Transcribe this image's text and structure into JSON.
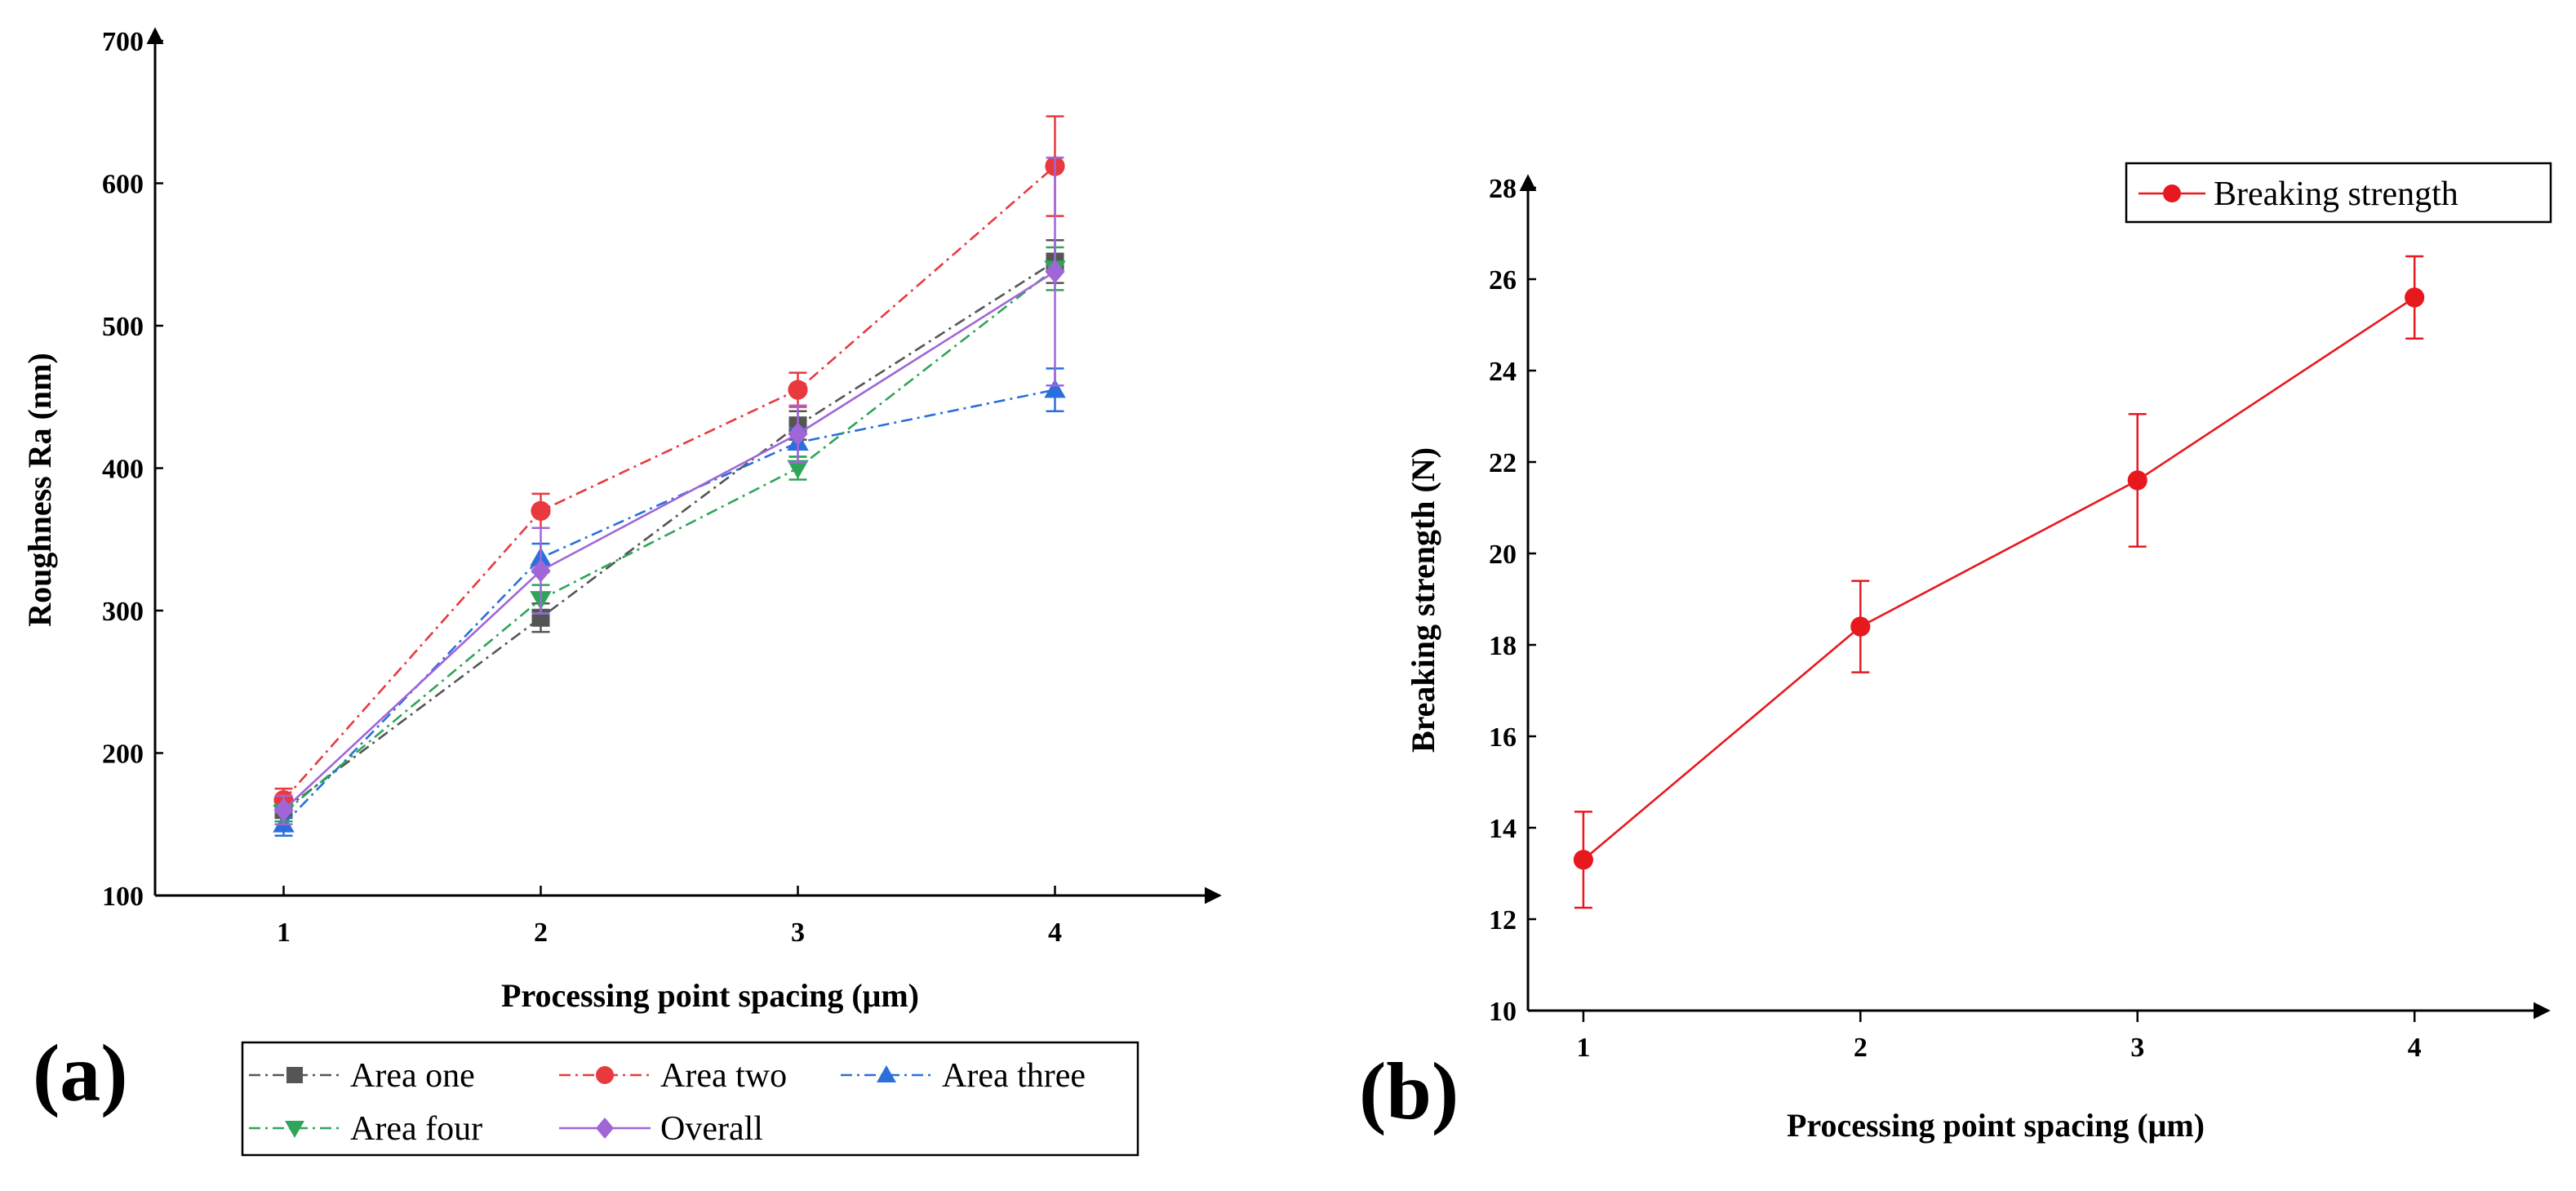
{
  "panels": {
    "a": {
      "label": "(a)"
    },
    "b": {
      "label": "(b)"
    }
  },
  "chart_data": [
    {
      "type": "line",
      "xlabel": "Processing point spacing (μm)",
      "ylabel": "Roughness Ra (nm)",
      "x": [
        1,
        2,
        3,
        4
      ],
      "x_ticks": [
        "1",
        "2",
        "3",
        "4"
      ],
      "xlim": [
        0.5,
        4.5
      ],
      "ylim": [
        100,
        700
      ],
      "y_ticks": [
        "100",
        "200",
        "300",
        "400",
        "500",
        "600",
        "700"
      ],
      "legend_position": "bottom",
      "series": [
        {
          "name": "Area one",
          "values": [
            160,
            295,
            430,
            545
          ],
          "errors": [
            8,
            10,
            10,
            15
          ],
          "color": "#555555",
          "marker": "square",
          "dash": "dashdot"
        },
        {
          "name": "Area two",
          "values": [
            167,
            370,
            455,
            612
          ],
          "errors": [
            8,
            12,
            12,
            35
          ],
          "color": "#e8393f",
          "marker": "circle",
          "dash": "dashdot"
        },
        {
          "name": "Area three",
          "values": [
            150,
            337,
            418,
            455
          ],
          "errors": [
            8,
            10,
            10,
            15
          ],
          "color": "#2a6fdb",
          "marker": "triangle-up",
          "dash": "dashdot"
        },
        {
          "name": "Area four",
          "values": [
            158,
            308,
            400,
            540
          ],
          "errors": [
            6,
            10,
            8,
            15
          ],
          "color": "#2ea55a",
          "marker": "triangle-down",
          "dash": "dashdot"
        },
        {
          "name": "Overall",
          "values": [
            160,
            328,
            424,
            538
          ],
          "errors": [
            10,
            30,
            20,
            80
          ],
          "color": "#a066d8",
          "marker": "diamond",
          "dash": "solid"
        }
      ]
    },
    {
      "type": "line",
      "xlabel": "Processing point spacing (μm)",
      "ylabel": "Breaking strength (N)",
      "x": [
        1,
        2,
        3,
        4
      ],
      "x_ticks": [
        "1",
        "2",
        "3",
        "4"
      ],
      "xlim": [
        0.8,
        4.3
      ],
      "ylim": [
        10,
        28
      ],
      "y_ticks": [
        "10",
        "12",
        "14",
        "16",
        "18",
        "20",
        "22",
        "24",
        "26",
        "28"
      ],
      "legend_position": "top-right",
      "series": [
        {
          "name": "Breaking strength",
          "values": [
            13.3,
            18.4,
            21.6,
            25.6
          ],
          "errors": [
            1.05,
            1.0,
            1.45,
            0.9
          ],
          "color": "#e8181f",
          "marker": "circle",
          "dash": "solid"
        }
      ]
    }
  ]
}
